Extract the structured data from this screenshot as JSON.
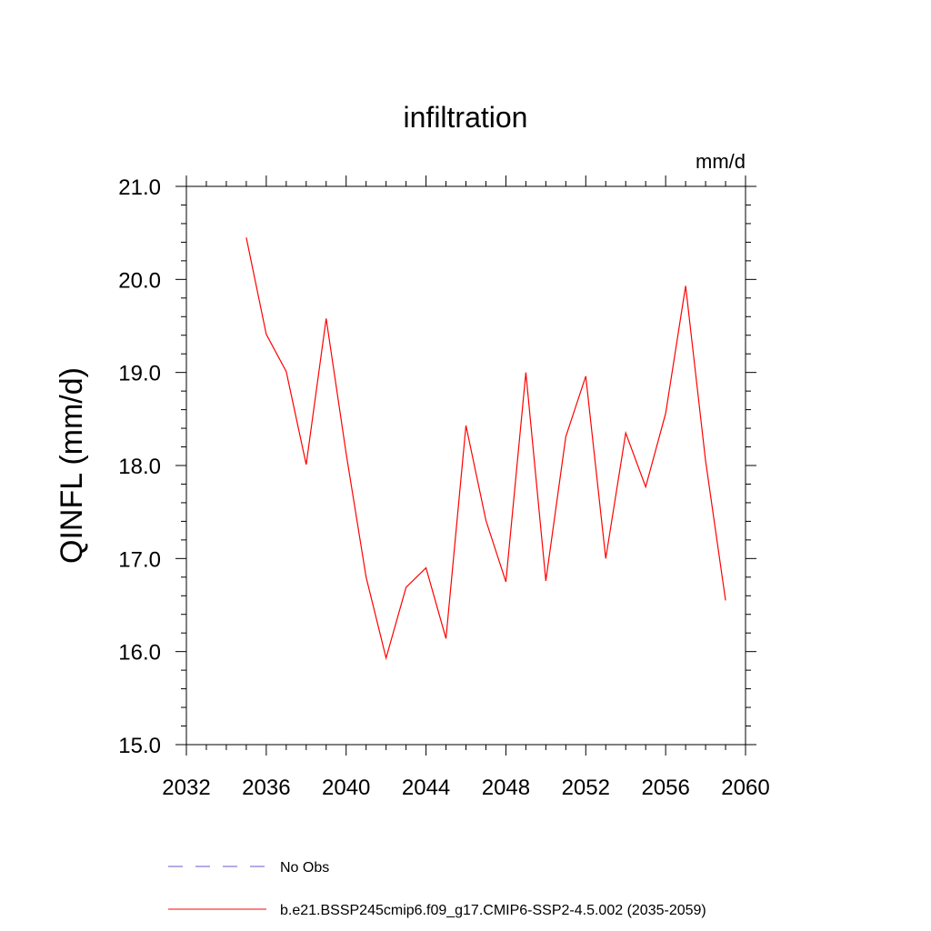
{
  "chart_data": {
    "type": "line",
    "title": "infiltration",
    "units_label": "mm/d",
    "ylabel": "QINFL  (mm/d)",
    "xlabel": "",
    "xlim": [
      2032,
      2060
    ],
    "ylim": [
      15.0,
      21.0
    ],
    "x_ticks": [
      2032,
      2036,
      2040,
      2044,
      2048,
      2052,
      2056,
      2060
    ],
    "x_tick_labels": [
      "2032",
      "2036",
      "2040",
      "2044",
      "2048",
      "2052",
      "2056",
      "2060"
    ],
    "y_ticks": [
      15.0,
      16.0,
      17.0,
      18.0,
      19.0,
      20.0,
      21.0
    ],
    "y_tick_labels": [
      "15.0",
      "16.0",
      "17.0",
      "18.0",
      "19.0",
      "20.0",
      "21.0"
    ],
    "grid": false,
    "legend_position": "bottom",
    "series": [
      {
        "name": "b.e21.BSSP245cmip6.f09_g17.CMIP6-SSP2-4.5.002 (2035-2059)",
        "color": "#ff0000",
        "x": [
          2035,
          2036,
          2037,
          2038,
          2039,
          2040,
          2041,
          2042,
          2043,
          2044,
          2045,
          2046,
          2047,
          2048,
          2049,
          2050,
          2051,
          2052,
          2053,
          2054,
          2055,
          2056,
          2057,
          2058,
          2059
        ],
        "y": [
          20.45,
          19.41,
          19.01,
          18.01,
          19.58,
          18.13,
          16.8,
          15.93,
          16.69,
          16.9,
          16.14,
          18.43,
          17.41,
          16.75,
          19.0,
          16.76,
          18.31,
          18.96,
          17.0,
          18.35,
          17.77,
          18.56,
          19.93,
          18.05,
          16.55
        ]
      }
    ],
    "legend_entries": [
      {
        "label": "No Obs",
        "color": "#6a5acd",
        "dash": "dashed"
      },
      {
        "label": "b.e21.BSSP245cmip6.f09_g17.CMIP6-SSP2-4.5.002 (2035-2059)",
        "color": "#ff0000",
        "dash": "solid"
      }
    ]
  }
}
